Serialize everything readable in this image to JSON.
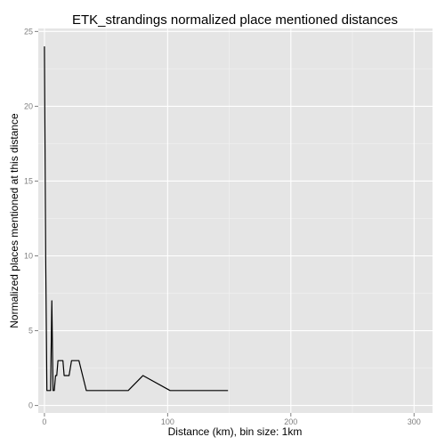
{
  "chart_data": {
    "type": "line",
    "title": "ETK_strandings normalized place mentioned distances",
    "xlabel": "Distance (km), bin size: 1km",
    "ylabel": "Normalized places mentioned at this distance",
    "xlim": [
      -5,
      315
    ],
    "ylim": [
      -0.5,
      25.2
    ],
    "x_ticks": [
      0,
      100,
      200,
      300
    ],
    "x_tick_labels": [
      "0",
      "100",
      "200",
      "300"
    ],
    "y_ticks": [
      0,
      5,
      10,
      15,
      20,
      25
    ],
    "y_tick_labels": [
      "0",
      "5",
      "10",
      "15",
      "20",
      "25"
    ],
    "x_minor_ticks": [
      50,
      150,
      250
    ],
    "y_minor_ticks": [
      2.5,
      7.5,
      12.5,
      17.5,
      22.5
    ],
    "grid": true,
    "panel_color": "#e5e5e5",
    "line_color": "#000000",
    "series": [
      {
        "x": [
          0,
          1,
          2,
          3,
          4,
          5,
          6,
          7,
          8,
          9,
          10,
          11,
          12,
          13,
          15,
          16,
          17,
          19,
          20,
          22,
          23,
          25,
          26,
          28,
          31,
          34,
          68,
          80,
          102,
          149
        ],
        "y": [
          24,
          10,
          1,
          1,
          1,
          1,
          7,
          1,
          1,
          2,
          2,
          3,
          3,
          3,
          3,
          2,
          2,
          2,
          2,
          3,
          3,
          3,
          3,
          3,
          2,
          1,
          1,
          2,
          1,
          1
        ]
      }
    ]
  }
}
